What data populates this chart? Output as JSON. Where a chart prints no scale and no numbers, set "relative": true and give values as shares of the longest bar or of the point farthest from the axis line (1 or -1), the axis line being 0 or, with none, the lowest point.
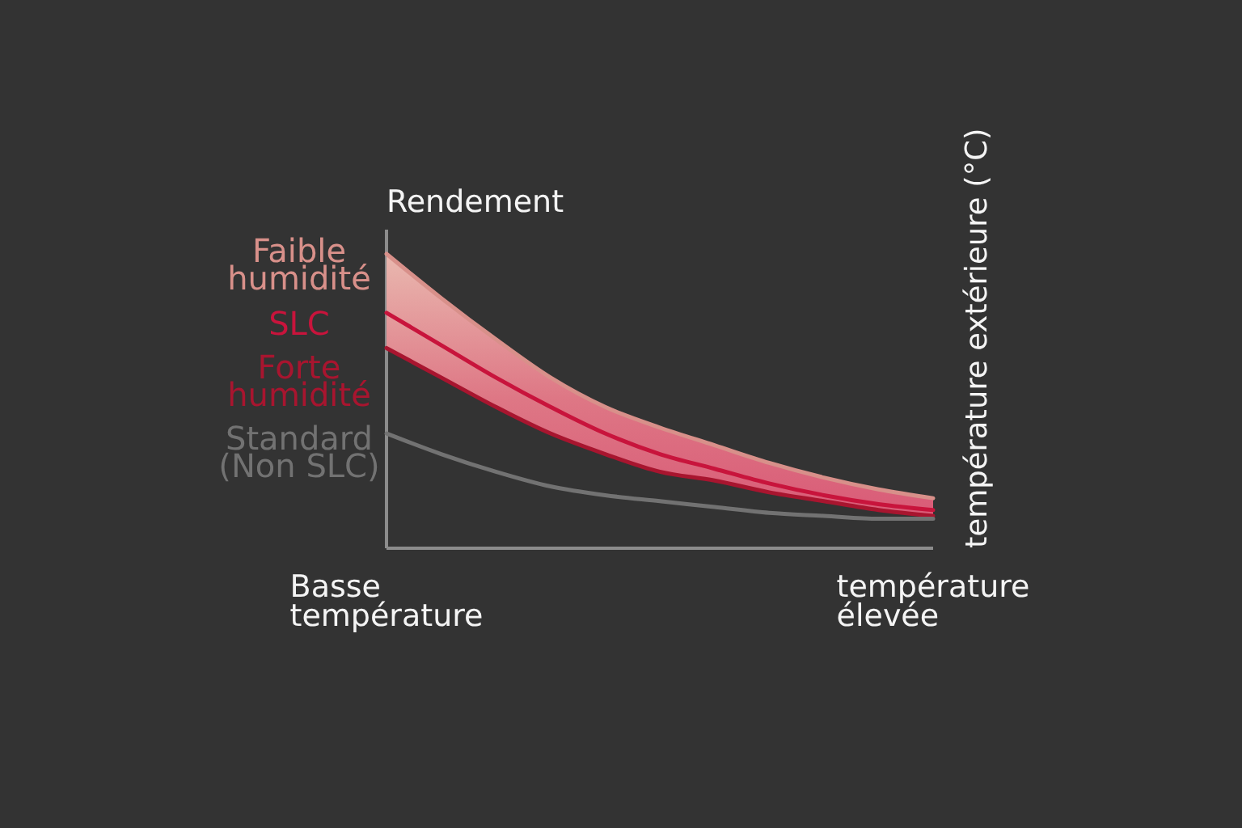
{
  "chart_data": {
    "type": "line",
    "relative": true,
    "ylabel": "Rendement",
    "annotations": [
      "température extérieure (°C)"
    ],
    "categories": [
      "Basse température",
      null,
      null,
      null,
      null,
      null,
      null,
      null,
      null,
      null,
      "température élevée"
    ],
    "series": [
      {
        "name": "Faible humidité",
        "color": "#d8908a",
        "values": [
          1,
          0.85,
          0.71,
          0.58,
          0.48,
          0.41,
          0.35,
          0.29,
          0.24,
          0.2,
          0.17
        ]
      },
      {
        "name": "SLC",
        "color": "#c8143c",
        "values": [
          0.8,
          0.69,
          0.58,
          0.48,
          0.39,
          0.32,
          0.27,
          0.22,
          0.18,
          0.15,
          0.13
        ],
        "lower": [
          0.68,
          0.58,
          0.48,
          0.39,
          0.32,
          0.26,
          0.23,
          0.19,
          0.16,
          0.13,
          0.11
        ],
        "upper": [
          1,
          0.85,
          0.71,
          0.58,
          0.48,
          0.41,
          0.35,
          0.29,
          0.24,
          0.2,
          0.17
        ]
      },
      {
        "name": "Forte humidité",
        "color": "#a8152f",
        "values": [
          0.68,
          0.58,
          0.48,
          0.39,
          0.32,
          0.26,
          0.23,
          0.19,
          0.16,
          0.13,
          0.11
        ]
      },
      {
        "name": "Standard (Non SLC)",
        "color": "#727272",
        "values": [
          0.39,
          0.32,
          0.26,
          0.21,
          0.18,
          0.16,
          0.14,
          0.12,
          0.11,
          0.1,
          0.1
        ]
      }
    ]
  }
}
